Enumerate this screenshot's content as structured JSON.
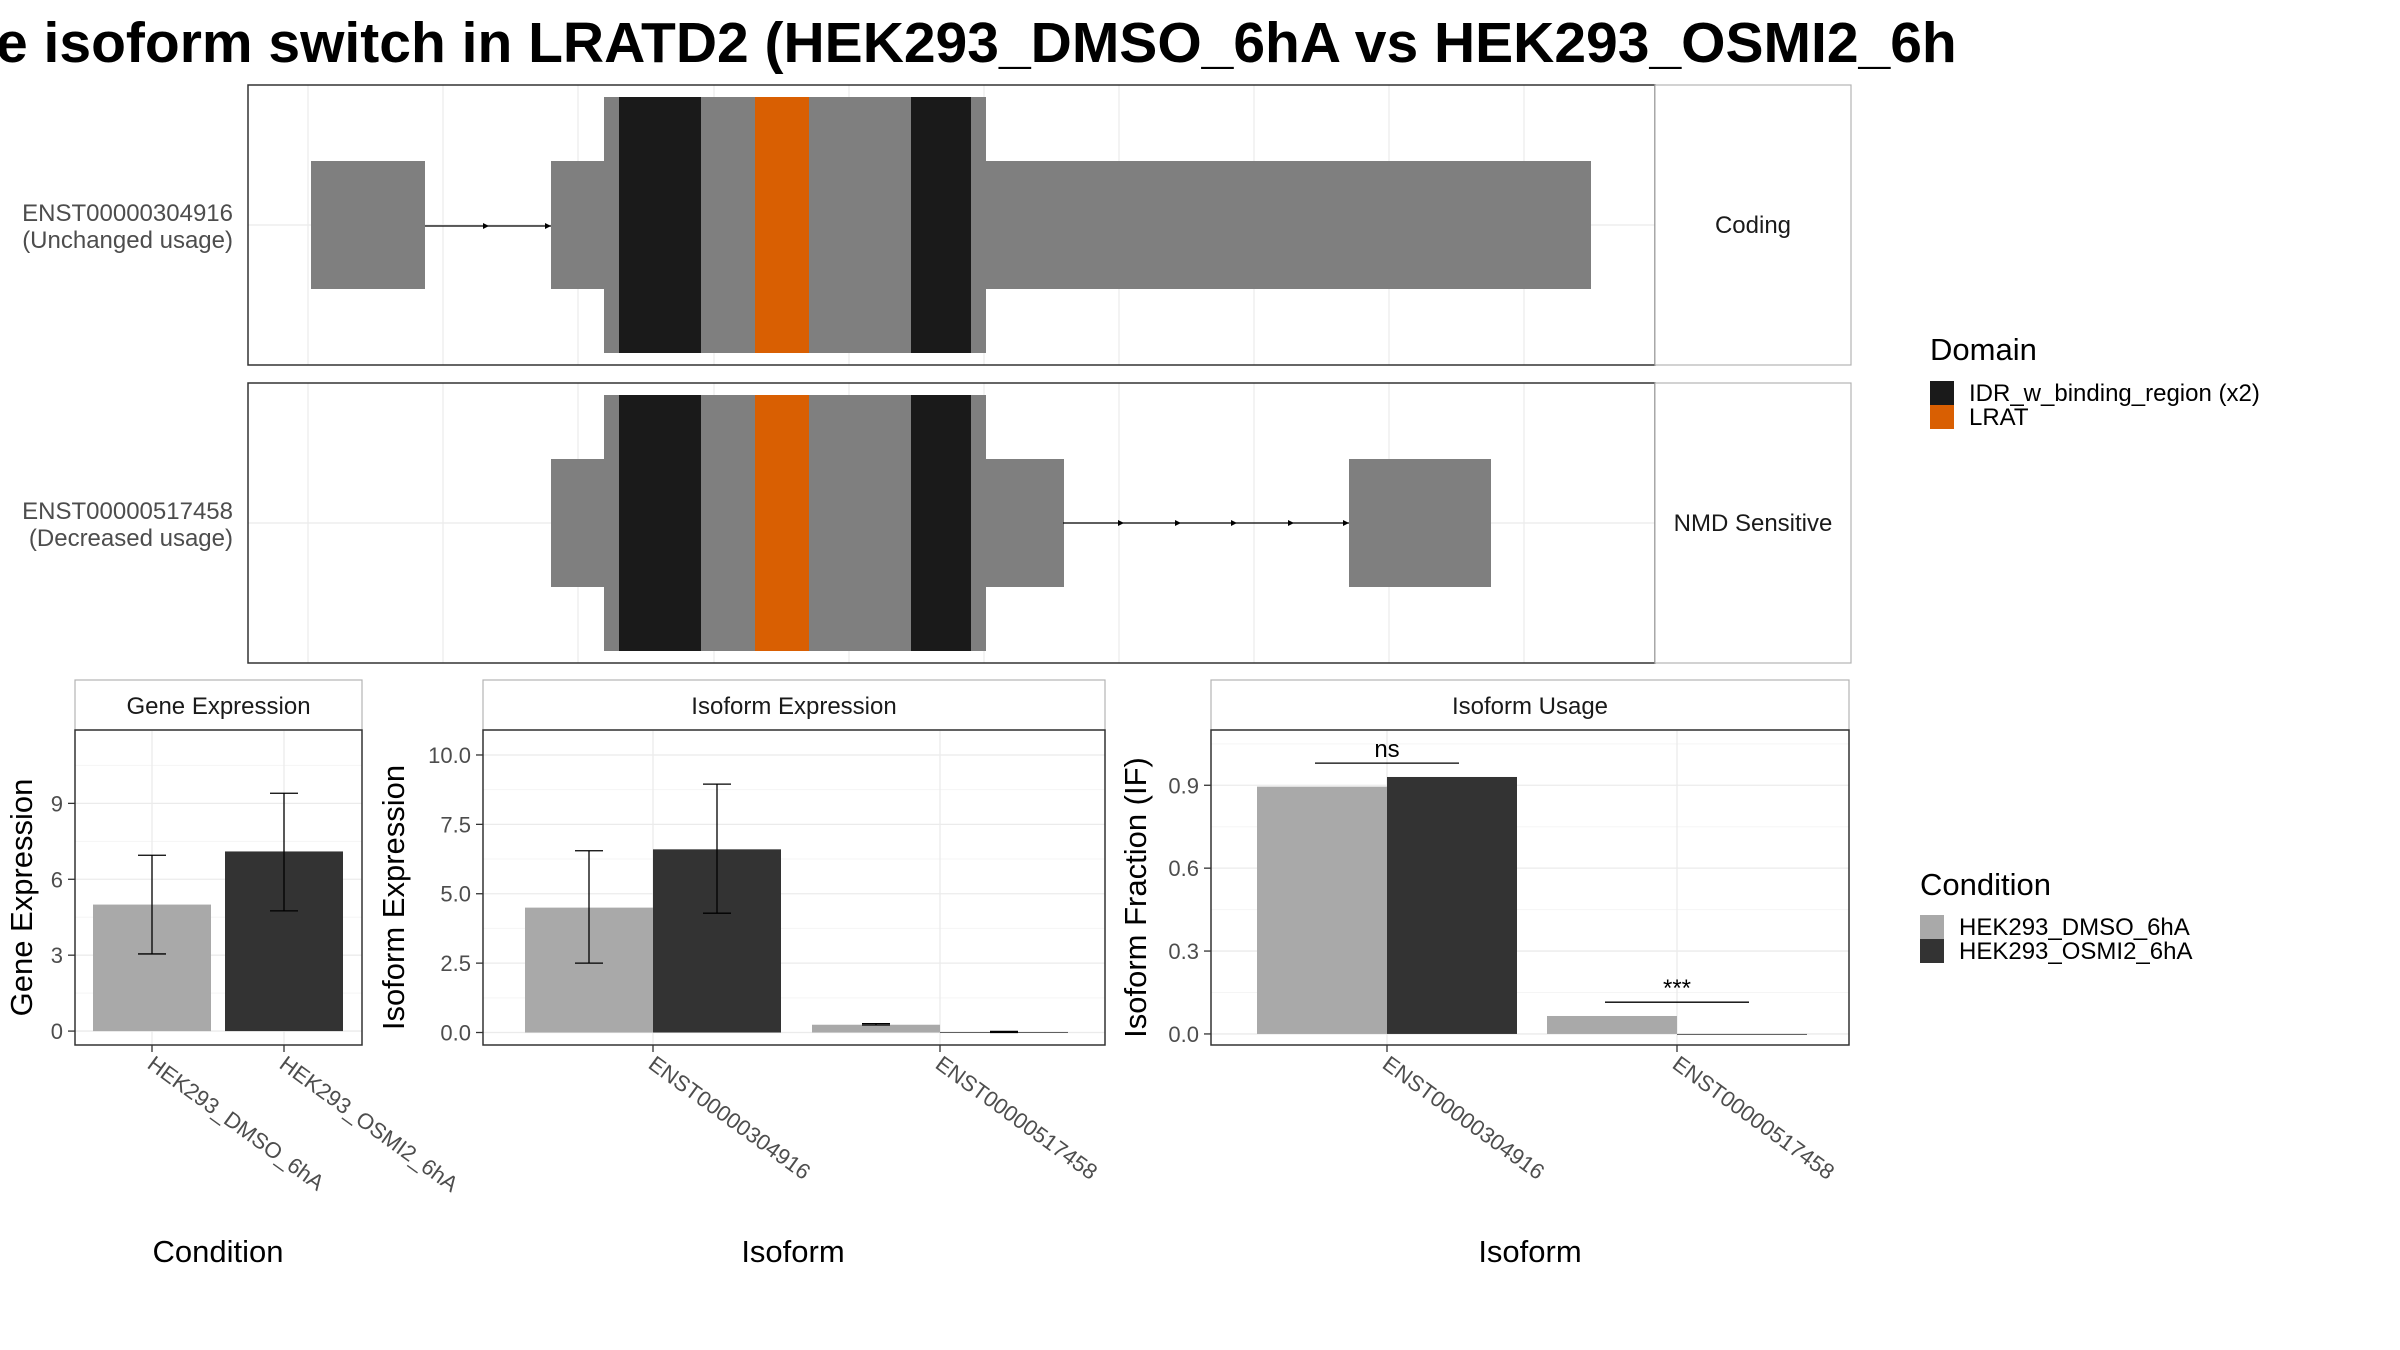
{
  "title": "e isoform switch in LRATD2 (HEK293_DMSO_6hA vs HEK293_OSMI2_6h",
  "colors": {
    "exon": "#7f7f7f",
    "idr": "#1a1a1a",
    "lrat": "#d95f02",
    "dmso": "#a9a9a9",
    "osmi2": "#333333"
  },
  "structure": {
    "transcripts": [
      {
        "id": "ENST00000304916",
        "usage": "(Unchanged usage)",
        "category": "Coding"
      },
      {
        "id": "ENST00000517458",
        "usage": "(Decreased usage)",
        "category": "NMD Sensitive"
      }
    ]
  },
  "domain_legend": {
    "title": "Domain",
    "items": [
      {
        "label": "IDR_w_binding_region (x2)",
        "color": "#1a1a1a"
      },
      {
        "label": "LRAT",
        "color": "#d95f02"
      }
    ]
  },
  "condition_legend": {
    "title": "Condition",
    "items": [
      {
        "label": "HEK293_DMSO_6hA",
        "color": "#a9a9a9"
      },
      {
        "label": "HEK293_OSMI2_6hA",
        "color": "#333333"
      }
    ]
  },
  "chart_data": [
    {
      "type": "bar",
      "panel": "Gene Expression",
      "xlabel": "Condition",
      "ylabel": "Gene Expression",
      "categories": [
        "HEK293_DMSO_6hA",
        "HEK293_OSMI2_6hA"
      ],
      "ylim": [
        -0.55,
        11.9
      ],
      "yticks": [
        0,
        3,
        6,
        9
      ],
      "series": [
        {
          "name": "HEK293_DMSO_6hA",
          "values": [
            5.0,
            null
          ],
          "err_low": [
            3.05,
            null
          ],
          "err_high": [
            6.95,
            null
          ]
        },
        {
          "name": "HEK293_OSMI2_6hA",
          "values": [
            null,
            7.1
          ],
          "err_low": [
            null,
            4.75
          ],
          "err_high": [
            null,
            9.4
          ]
        }
      ]
    },
    {
      "type": "bar",
      "panel": "Isoform Expression",
      "xlabel": "Isoform",
      "ylabel": "Isoform Expression",
      "categories": [
        "ENST00000304916",
        "ENST00000517458"
      ],
      "ylim": [
        -0.45,
        10.9
      ],
      "yticks": [
        "0.0",
        "2.5",
        "5.0",
        "7.5",
        "10.0"
      ],
      "series": [
        {
          "name": "HEK293_DMSO_6hA",
          "values": [
            4.5,
            0.28
          ],
          "err_low": [
            2.5,
            0.27
          ],
          "err_high": [
            6.55,
            0.32
          ]
        },
        {
          "name": "HEK293_OSMI2_6hA",
          "values": [
            6.6,
            0.02
          ],
          "err_low": [
            4.3,
            0.0
          ],
          "err_high": [
            8.95,
            0.04
          ]
        }
      ]
    },
    {
      "type": "bar",
      "panel": "Isoform Usage",
      "xlabel": "Isoform",
      "ylabel": "Isoform Fraction (IF)",
      "categories": [
        "ENST00000304916",
        "ENST00000517458"
      ],
      "ylim": [
        -0.04,
        1.1
      ],
      "yticks": [
        "0.0",
        "0.3",
        "0.6",
        "0.9"
      ],
      "series": [
        {
          "name": "HEK293_DMSO_6hA",
          "values": [
            0.895,
            0.065
          ]
        },
        {
          "name": "HEK293_OSMI2_6hA",
          "values": [
            0.93,
            0.0
          ]
        }
      ],
      "significance": [
        {
          "category": "ENST00000304916",
          "label": "ns",
          "y": 0.98
        },
        {
          "category": "ENST00000517458",
          "label": "***",
          "y": 0.115
        }
      ]
    }
  ]
}
